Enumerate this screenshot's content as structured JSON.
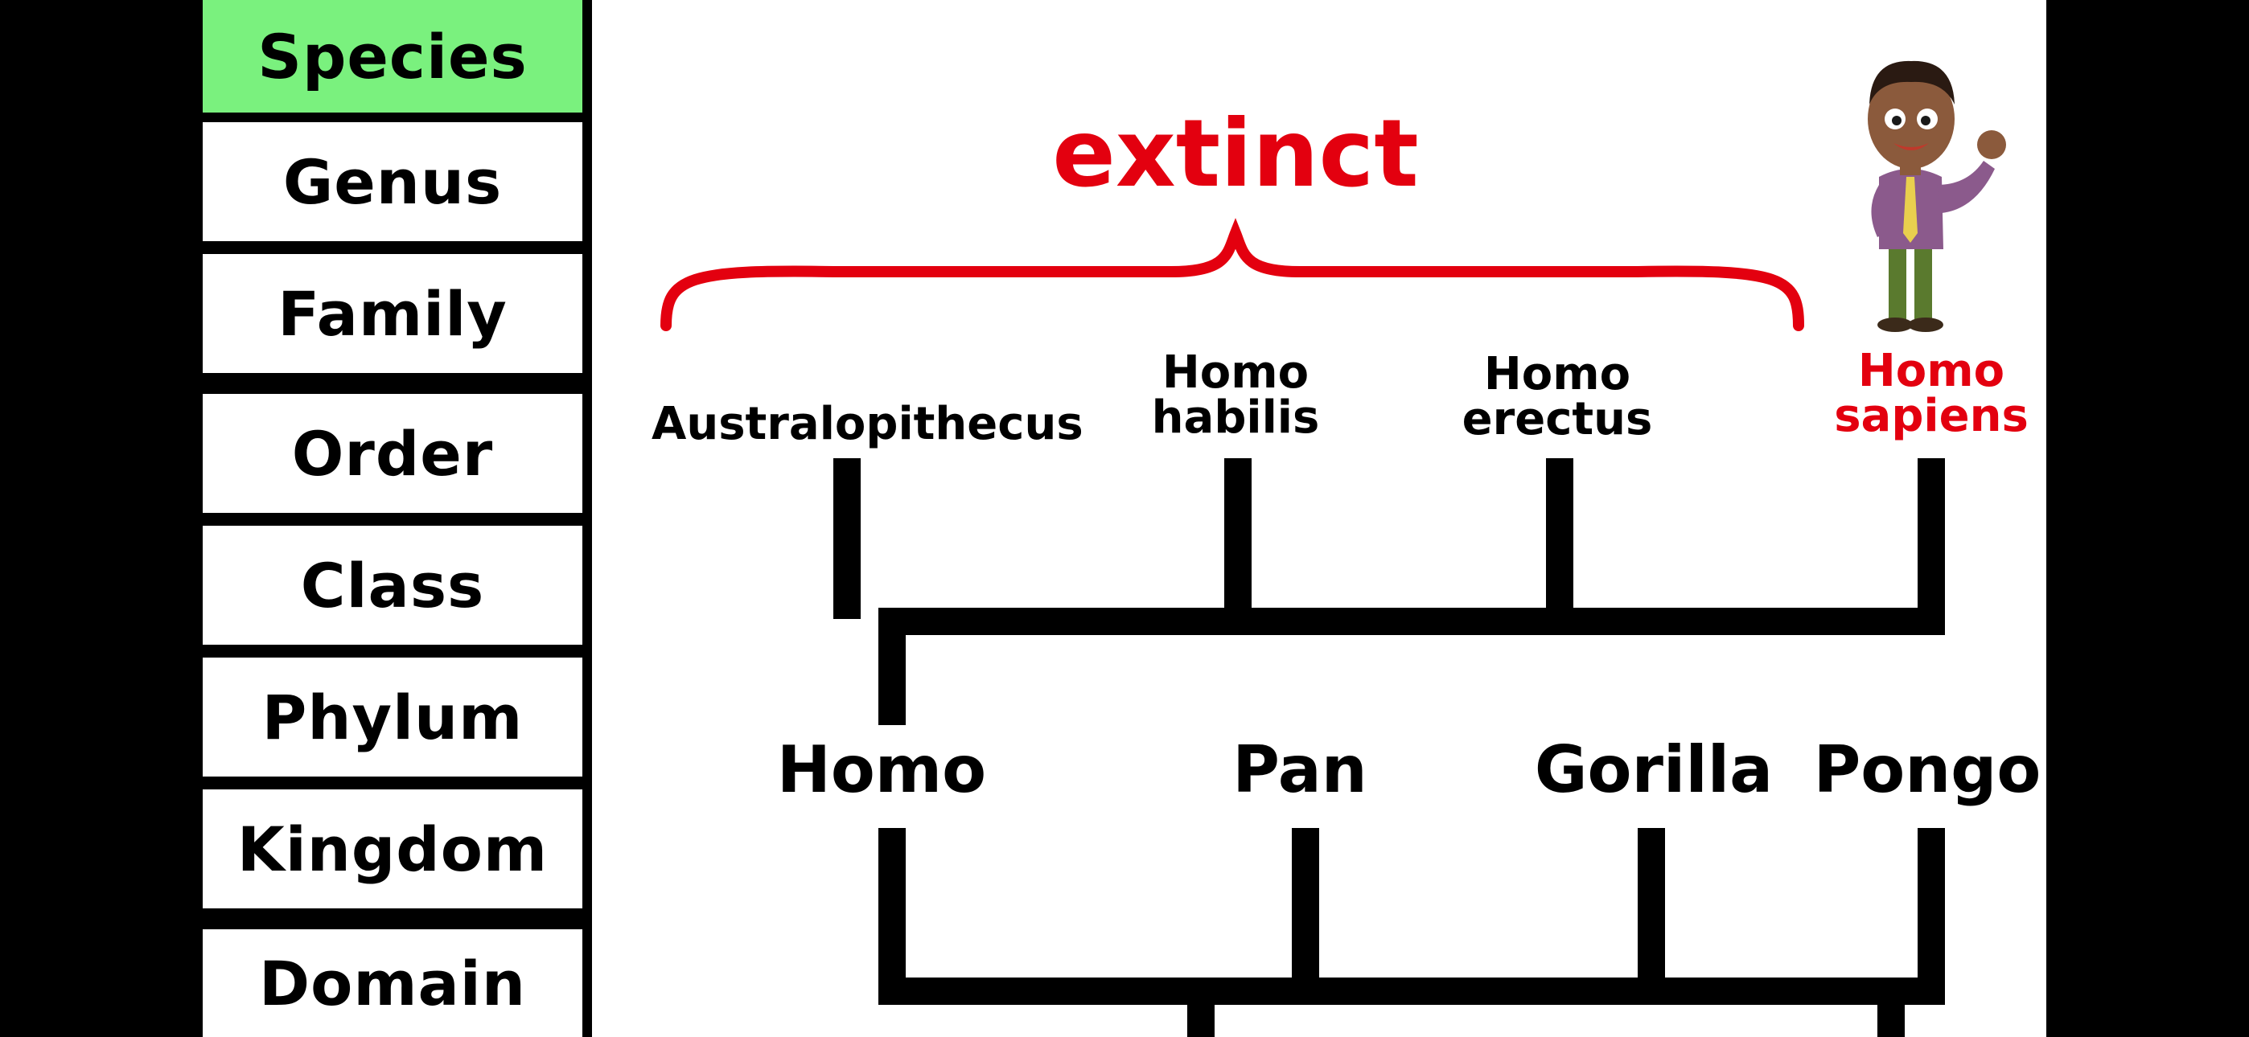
{
  "taxonomy_ranks": [
    {
      "label": "Species",
      "active": true
    },
    {
      "label": "Genus",
      "active": false
    },
    {
      "label": "Family",
      "active": false
    },
    {
      "label": "Order",
      "active": false
    },
    {
      "label": "Class",
      "active": false
    },
    {
      "label": "Phylum",
      "active": false
    },
    {
      "label": "Kingdom",
      "active": false
    },
    {
      "label": "Domain",
      "active": false
    }
  ],
  "diagram": {
    "extinct_label": "extinct",
    "species": [
      {
        "line1": "Australopithecus",
        "line2": "",
        "status": "extinct"
      },
      {
        "line1": "Homo",
        "line2": "habilis",
        "status": "extinct"
      },
      {
        "line1": "Homo",
        "line2": "erectus",
        "status": "extinct"
      },
      {
        "line1": "Homo",
        "line2": "sapiens",
        "status": "living"
      }
    ],
    "genera": [
      "Homo",
      "Pan",
      "Gorilla",
      "Pongo"
    ]
  },
  "colors": {
    "active_rank": "#7af17e",
    "highlight_red": "#e3000f",
    "line_black": "#000000"
  },
  "icons": {
    "mascot": "waving-cartoon-man"
  }
}
